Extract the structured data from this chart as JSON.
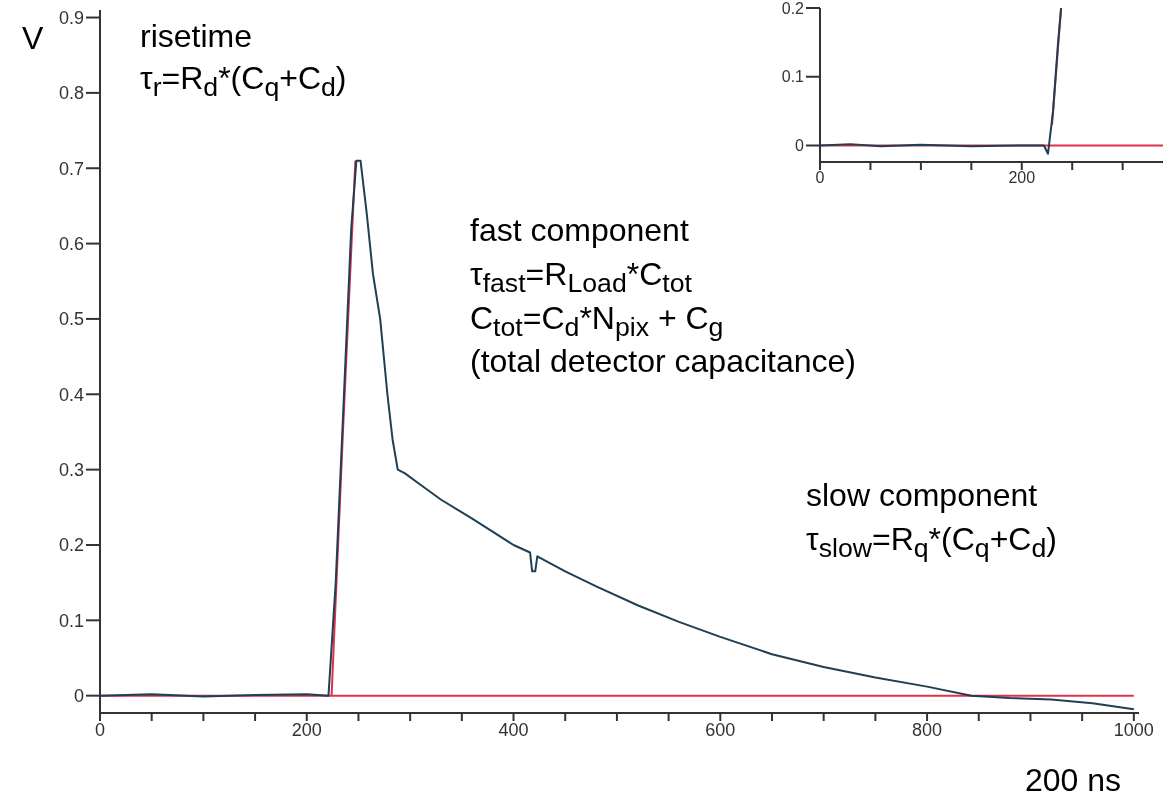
{
  "chart_data": [
    {
      "type": "line",
      "ylabel": "V",
      "xlabel": "200 ns",
      "annotations": [
        "risetime",
        "τ$_{r}$=R$_{d}$*(C$_{q}$+C$_{d}$)",
        "fast component",
        "τ$_{fast}$=R$_{Load}$*C$_{tot}$",
        "C$_{tot}$=C$_{d}$*N$_{pix}$ + C$_{g}$",
        "(total detector capacitance)",
        "slow component",
        "τ$_{slow}$=R$_{q}$*(C$_{q}$+C$_{d}$)"
      ],
      "xlim": [
        0,
        1005
      ],
      "ylim": [
        -0.023,
        0.91
      ],
      "xticks": [
        0,
        {
          "value": 50,
          "label": null
        },
        {
          "value": 100,
          "label": null
        },
        {
          "value": 150,
          "label": null
        },
        200,
        {
          "value": 250,
          "label": null
        },
        {
          "value": 300,
          "label": null
        },
        {
          "value": 350,
          "label": null
        },
        400,
        {
          "value": 450,
          "label": null
        },
        {
          "value": 500,
          "label": null
        },
        {
          "value": 550,
          "label": null
        },
        600,
        {
          "value": 650,
          "label": null
        },
        {
          "value": 700,
          "label": null
        },
        {
          "value": 750,
          "label": null
        },
        800,
        {
          "value": 850,
          "label": null
        },
        {
          "value": 900,
          "label": null
        },
        {
          "value": 950,
          "label": null
        },
        1000
      ],
      "yticks": [
        0,
        0.1,
        0.2,
        0.3,
        0.4,
        0.5,
        0.6,
        0.7,
        0.8,
        0.9
      ],
      "grid": false,
      "marker": "none",
      "line_style": "solid",
      "series": [
        {
          "color": "#1f3f55",
          "x": [
            0,
            50,
            100,
            150,
            200,
            221,
            228,
            236,
            243,
            248,
            252,
            258,
            264,
            271,
            278,
            283,
            288,
            295,
            310,
            330,
            360,
            400,
            416,
            418,
            421,
            423,
            450,
            480,
            520,
            560,
            600,
            650,
            700,
            750,
            800,
            843,
            880,
            920,
            960,
            1000
          ],
          "values": [
            0,
            0.002,
            -0.001,
            0.001,
            0.002,
            0,
            0.15,
            0.4,
            0.62,
            0.71,
            0.71,
            0.64,
            0.56,
            0.5,
            0.4,
            0.34,
            0.3,
            0.295,
            0.28,
            0.26,
            0.235,
            0.2,
            0.19,
            0.165,
            0.165,
            0.185,
            0.165,
            0.145,
            0.12,
            0.098,
            0.078,
            0.055,
            0.038,
            0.024,
            0.012,
            0,
            -0.003,
            -0.005,
            -0.01,
            -0.018
          ]
        },
        {
          "color": "#e0304a",
          "x": [
            0,
            1000
          ],
          "values": [
            0,
            0
          ]
        },
        {
          "color": "#e0304a",
          "x": [
            224,
            235,
            247
          ],
          "values": [
            0,
            0.35,
            0.71
          ]
        }
      ]
    },
    {
      "type": "line",
      "xlim": [
        0,
        340
      ],
      "ylim": [
        -0.024,
        0.2
      ],
      "xticks": [
        0,
        {
          "value": 50,
          "label": null
        },
        {
          "value": 100,
          "label": null
        },
        {
          "value": 150,
          "label": null
        },
        200,
        {
          "value": 250,
          "label": null
        },
        {
          "value": 300,
          "label": null
        }
      ],
      "yticks": [
        0,
        0.1,
        0.2
      ],
      "grid": false,
      "marker": "none",
      "line_style": "solid",
      "series": [
        {
          "color": "#1f3f55",
          "x": [
            0,
            30,
            60,
            100,
            150,
            200,
            222,
            226,
            231,
            236,
            239
          ],
          "values": [
            0,
            0.002,
            -0.001,
            0.001,
            -0.001,
            0,
            0,
            -0.012,
            0.05,
            0.15,
            0.2
          ]
        },
        {
          "color": "#e0304a",
          "x": [
            0,
            340
          ],
          "values": [
            0,
            0
          ]
        },
        {
          "color": "#e0304a",
          "x": [
            230,
            239
          ],
          "values": [
            0.03,
            0.2
          ]
        }
      ]
    }
  ]
}
